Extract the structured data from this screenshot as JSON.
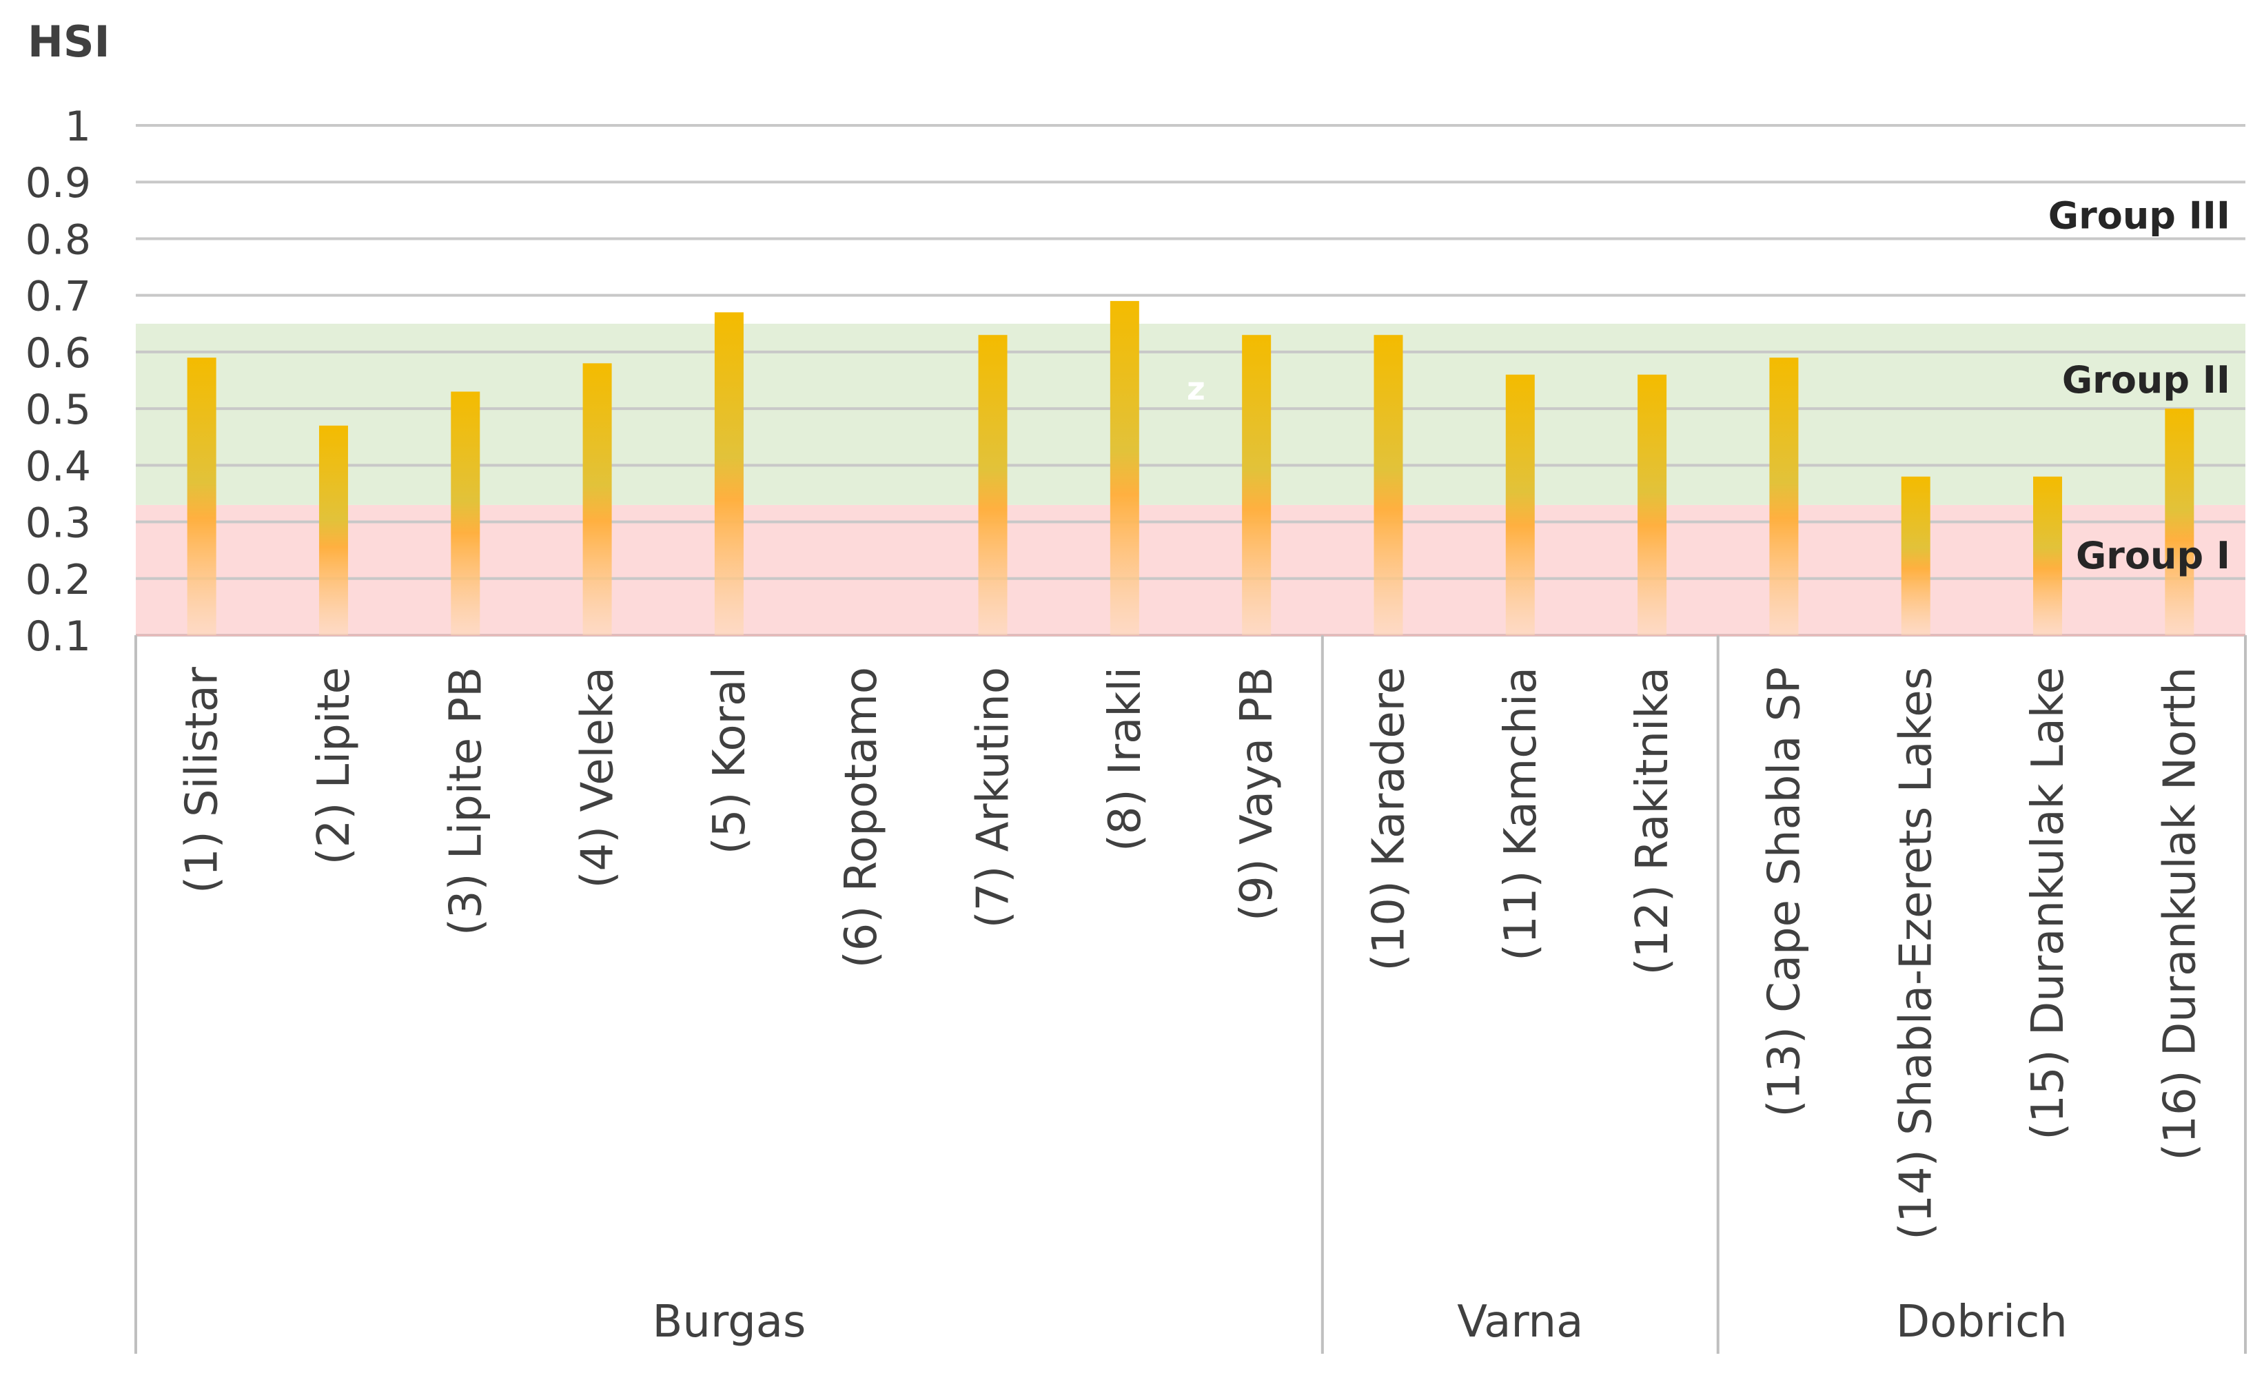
{
  "chart_data": {
    "type": "bar",
    "ylabel": "HSI",
    "ylim": [
      0.1,
      1
    ],
    "yticks": [
      "0.1",
      "0.2",
      "0.3",
      "0.4",
      "0.5",
      "0.6",
      "0.7",
      "0.8",
      "0.9",
      "1"
    ],
    "grid": true,
    "categories": [
      "(1) Silistar",
      "(2) Lipite",
      "(3) Lipite PB",
      "(4) Veleka",
      "(5) Koral",
      "(6) Ropotamo",
      "(7) Arkutino",
      "(8) Irakli",
      "(9) Vaya PB",
      "(10) Karadere",
      "(11) Kamchia",
      "(12) Rakitnika",
      "(13) Cape Shabla SP",
      "(14) Shabla-Ezerets Lakes",
      "(15) Durankulak Lake",
      "(16) Durankulak North"
    ],
    "values": [
      0.59,
      0.47,
      0.53,
      0.58,
      0.67,
      null,
      0.63,
      0.69,
      0.63,
      0.63,
      0.56,
      0.56,
      0.59,
      0.38,
      0.38,
      0.5
    ],
    "groups": [
      {
        "label": "Burgas",
        "count": 9
      },
      {
        "label": "Varna",
        "count": 3
      },
      {
        "label": "Dobrich",
        "count": 4
      }
    ],
    "bands": [
      {
        "label": "Group I",
        "from": 0.1,
        "to": 0.33,
        "color": "#fddada"
      },
      {
        "label": "Group II",
        "from": 0.33,
        "to": 0.65,
        "color": "#e3efd9"
      },
      {
        "label": "Group III",
        "from": 0.65,
        "to": 1.0,
        "color": "#ffffff"
      }
    ],
    "annotations": [
      "z"
    ],
    "colors": {
      "bar_top": "#f2b800",
      "bar_mid": "#e0c030",
      "bar_low": "#ffb347",
      "grid": "#c8c8c8",
      "axis": "#bfbfbf"
    }
  }
}
